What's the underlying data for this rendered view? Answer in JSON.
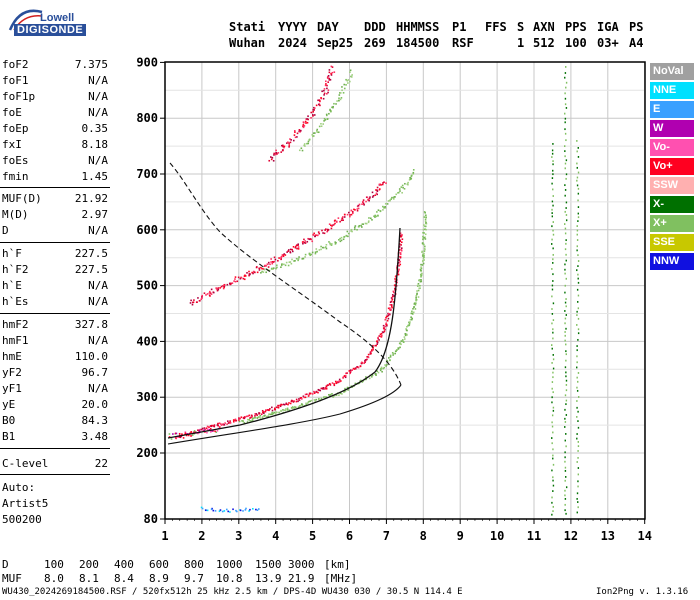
{
  "logo": {
    "top": "Lowell",
    "bottom": "DIGISONDE"
  },
  "header": {
    "labels": [
      "Stati",
      "YYYY",
      "DAY",
      "DDD",
      "HHMMSS",
      "P1",
      "FFS",
      "S",
      "AXN",
      "PPS",
      "IGA",
      "PS"
    ],
    "values": [
      "Wuhan",
      "2024",
      "Sep25",
      "269",
      "184500",
      "RSF",
      "1",
      "512",
      "100",
      "03+",
      "A4"
    ]
  },
  "params": [
    {
      "label": "foF2",
      "value": "7.375"
    },
    {
      "label": "foF1",
      "value": "N/A"
    },
    {
      "label": "foF1p",
      "value": "N/A"
    },
    {
      "label": "foE",
      "value": "N/A"
    },
    {
      "label": "foEp",
      "value": "0.35"
    },
    {
      "label": "fxI",
      "value": "8.18"
    },
    {
      "label": "foEs",
      "value": "N/A"
    },
    {
      "label": "fmin",
      "value": "1.45"
    },
    {
      "label": "MUF(D)",
      "value": "21.92"
    },
    {
      "label": "M(D)",
      "value": "2.97"
    },
    {
      "label": "D",
      "value": "N/A"
    },
    {
      "label": "h`F",
      "value": "227.5"
    },
    {
      "label": "h`F2",
      "value": "227.5"
    },
    {
      "label": "h`E",
      "value": "N/A"
    },
    {
      "label": "h`Es",
      "value": "N/A"
    },
    {
      "label": "hmF2",
      "value": "327.8"
    },
    {
      "label": "hmF1",
      "value": "N/A"
    },
    {
      "label": "hmE",
      "value": "110.0"
    },
    {
      "label": "yF2",
      "value": "96.7"
    },
    {
      "label": "yF1",
      "value": "N/A"
    },
    {
      "label": "yE",
      "value": "20.0"
    },
    {
      "label": "B0",
      "value": "84.3"
    },
    {
      "label": "B1",
      "value": "3.48"
    },
    {
      "label": "C-level",
      "value": "22"
    }
  ],
  "auto": {
    "line1": "Auto:",
    "line2": "Artist5",
    "line3": "500200"
  },
  "legend": [
    {
      "name": "NoVal",
      "color": "#a0a0a0"
    },
    {
      "name": "NNE",
      "color": "#00e0ff"
    },
    {
      "name": "E",
      "color": "#3aa0ff"
    },
    {
      "name": "W",
      "color": "#b000b0"
    },
    {
      "name": "Vo-",
      "color": "#ff50b0"
    },
    {
      "name": "Vo+",
      "color": "#ff0020"
    },
    {
      "name": "SSW",
      "color": "#ffb0b0"
    },
    {
      "name": "X-",
      "color": "#007000"
    },
    {
      "name": "X+",
      "color": "#80c060"
    },
    {
      "name": "SSE",
      "color": "#c8c800"
    },
    {
      "name": "NNW",
      "color": "#1010e0"
    }
  ],
  "chart": {
    "x_ticks": [
      "1",
      "2",
      "3",
      "4",
      "5",
      "6",
      "7",
      "8",
      "9",
      "10",
      "11",
      "12",
      "13",
      "14"
    ],
    "y_ticks": [
      "80",
      "200",
      "300",
      "400",
      "500",
      "600",
      "700",
      "800",
      "900"
    ]
  },
  "footer": {
    "d_label": "D",
    "d_values": [
      "100",
      "200",
      "400",
      "600",
      "800",
      "1000",
      "1500",
      "3000",
      "[km]"
    ],
    "muf_label": "MUF",
    "muf_values": [
      "8.0",
      "8.1",
      "8.4",
      "8.9",
      "9.7",
      "10.8",
      "13.9",
      "21.9",
      "[MHz]"
    ],
    "info": "WU430_2024269184500.RSF / 520fx512h 25 kHz 2.5 km / DPS-4D WU430 030 / 30.5 N 114.4 E",
    "version": "Ion2Png v. 1.3.16"
  }
}
